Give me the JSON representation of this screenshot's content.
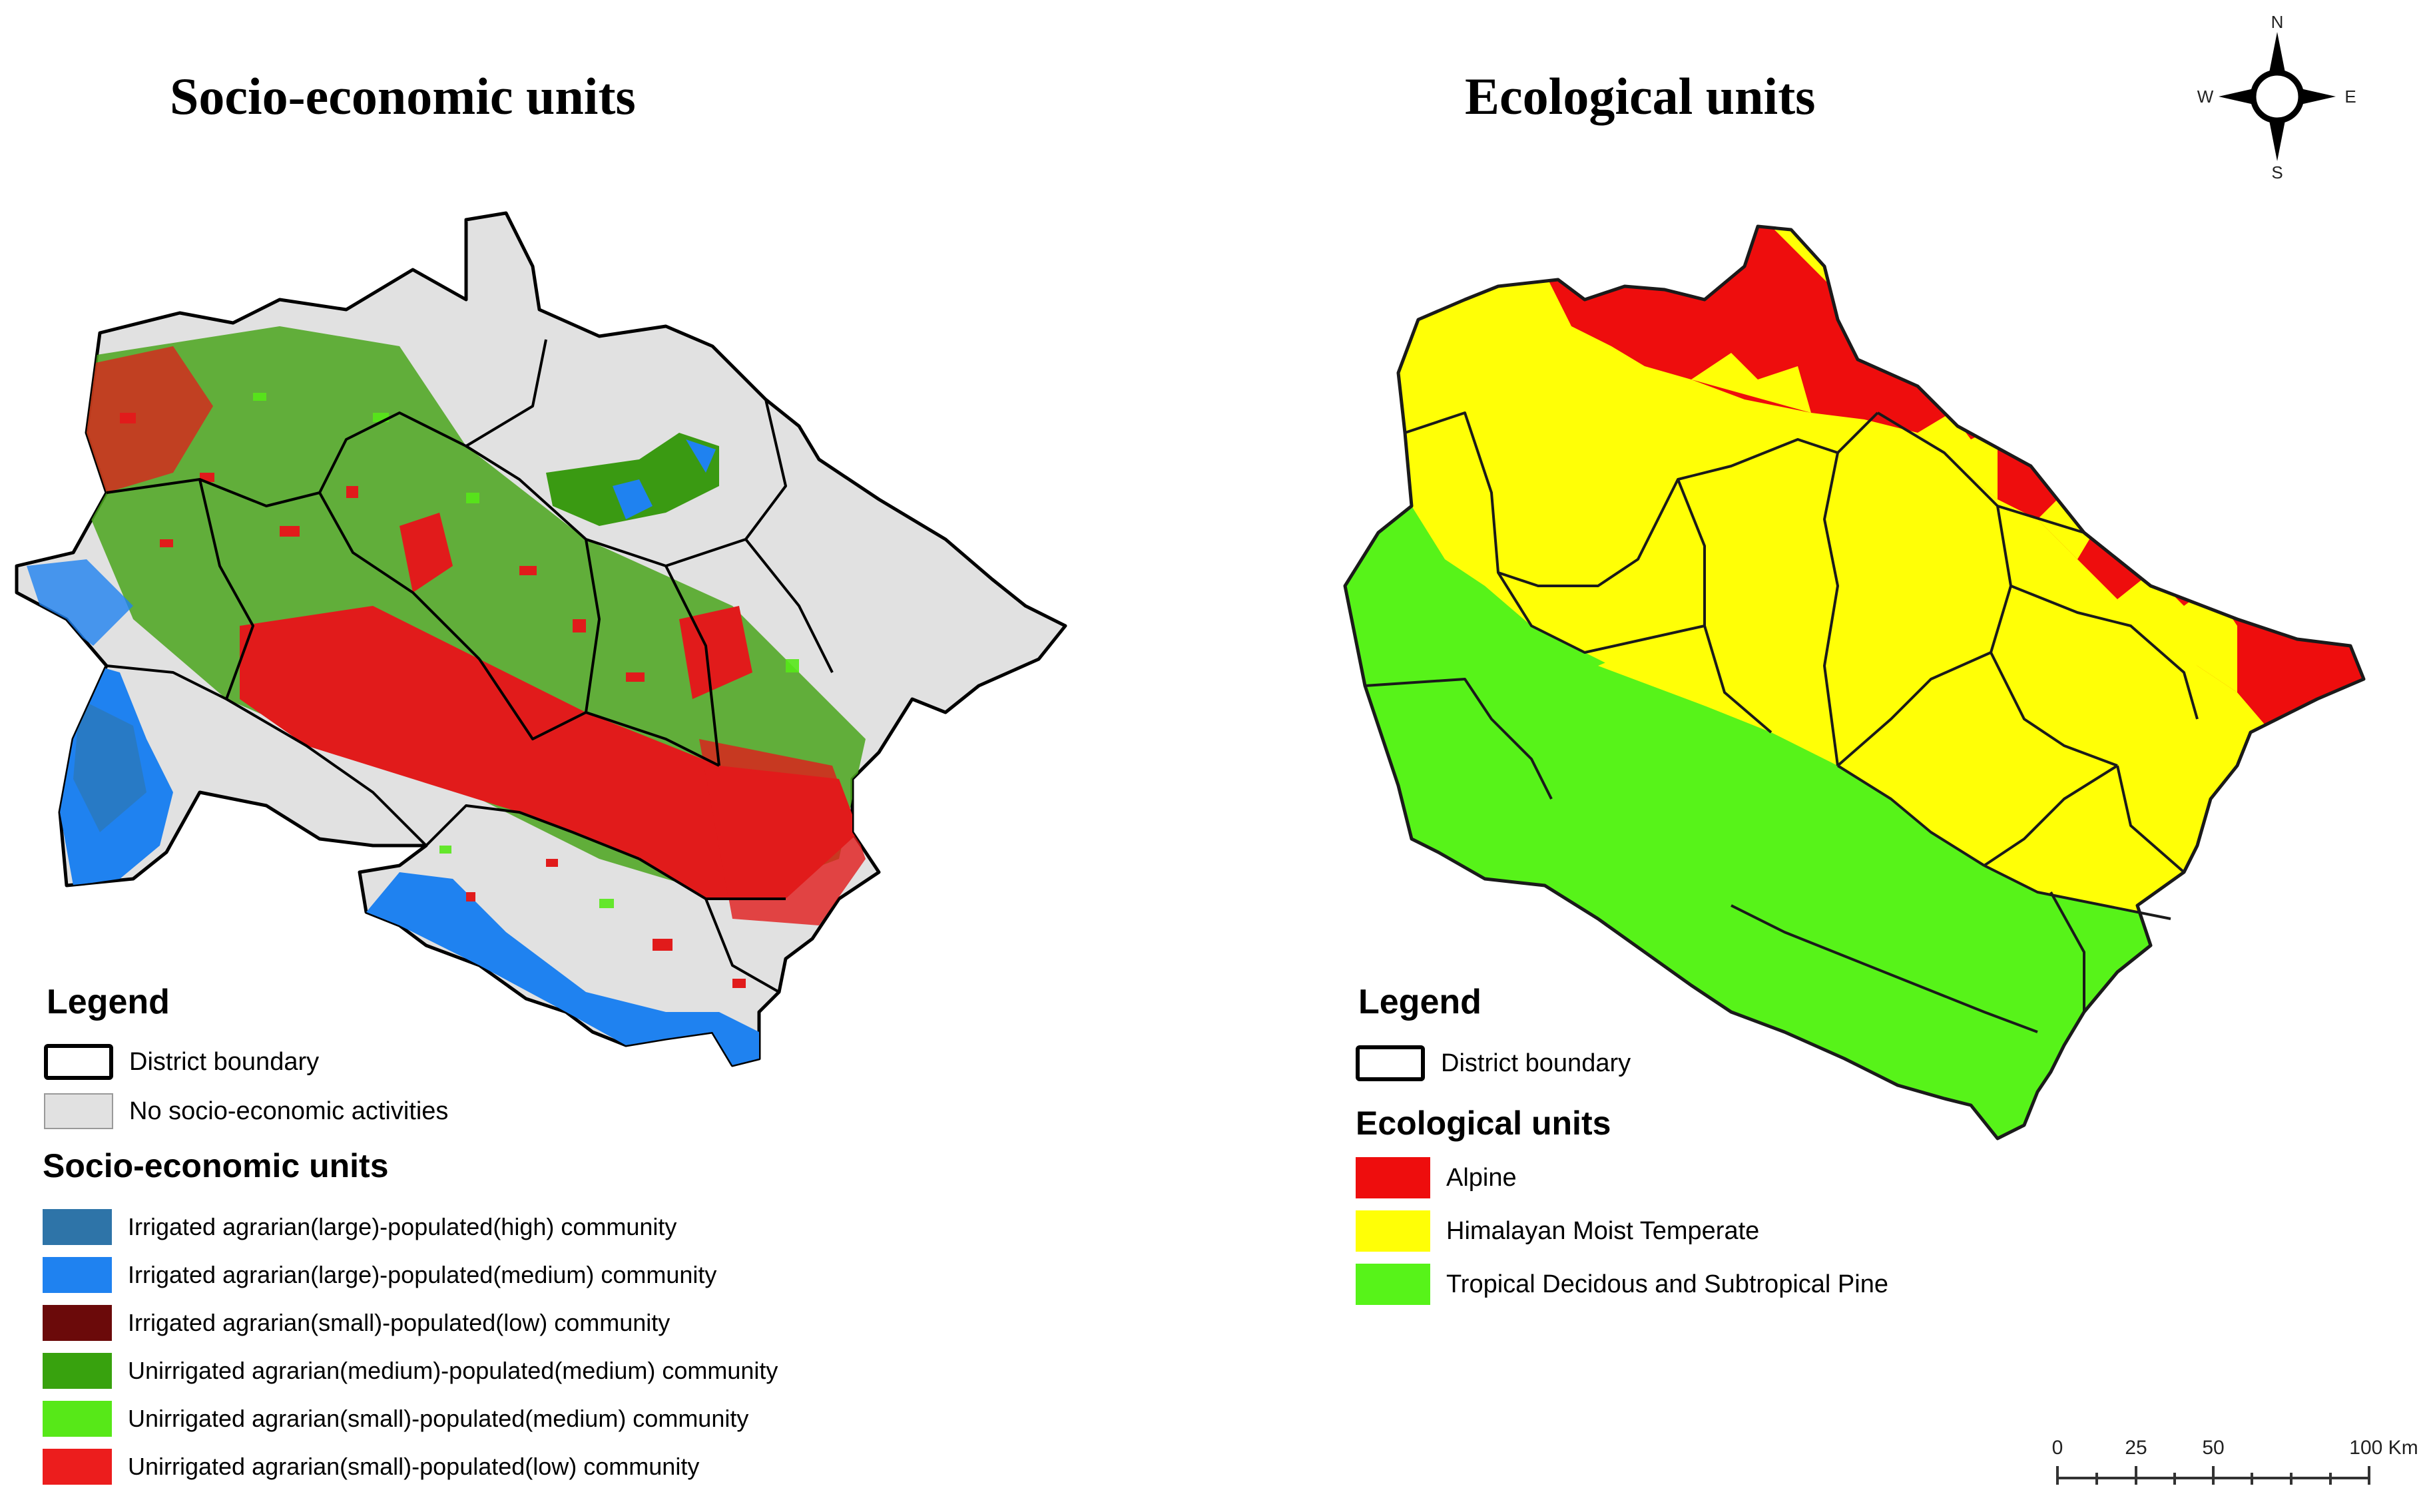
{
  "left_panel": {
    "title": "Socio-economic units",
    "legend_title": "Legend",
    "basic_items": [
      {
        "label": "District boundary",
        "swatch": "#ffffff",
        "border": "#000000"
      },
      {
        "label": "No socio-economic activities",
        "swatch": "#e1e1e1",
        "border": "#999999"
      }
    ],
    "units_title": "Socio-economic units",
    "units": [
      {
        "label": "Irrigated agrarian(large)-populated(high) community",
        "color": "#2e74a8"
      },
      {
        "label": "Irrigated agrarian(large)-populated(medium) community",
        "color": "#1f82f0"
      },
      {
        "label": "Irrigated agrarian(small)-populated(low) community",
        "color": "#6b0a0a"
      },
      {
        "label": "Unirrigated agrarian(medium)-populated(medium) community",
        "color": "#38a20e"
      },
      {
        "label": "Unirrigated agrarian(small)-populated(medium) community",
        "color": "#57e818"
      },
      {
        "label": "Unirrigated agrarian(small)-populated(low) community",
        "color": "#ec1d1d"
      }
    ]
  },
  "right_panel": {
    "title": "Ecological units",
    "legend_title": "Legend",
    "basic_items": [
      {
        "label": "District boundary",
        "swatch": "#ffffff",
        "border": "#000000"
      }
    ],
    "units_title": "Ecological units",
    "units": [
      {
        "label": "Alpine",
        "color": "#ee0d0d"
      },
      {
        "label": "Himalayan Moist Temperate",
        "color": "#ffff06"
      },
      {
        "label": "Tropical Decidous and Subtropical Pine",
        "color": "#57f319"
      }
    ]
  },
  "compass": {
    "n": "N",
    "s": "S",
    "e": "E",
    "w": "W"
  },
  "scale_bar": {
    "ticks": [
      "0",
      "25",
      "50",
      "100 Km"
    ]
  }
}
